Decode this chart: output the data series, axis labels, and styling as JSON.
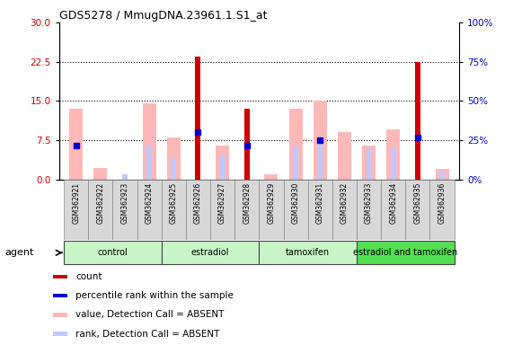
{
  "title": "GDS5278 / MmugDNA.23961.1.S1_at",
  "samples": [
    "GSM362921",
    "GSM362922",
    "GSM362923",
    "GSM362924",
    "GSM362925",
    "GSM362926",
    "GSM362927",
    "GSM362928",
    "GSM362929",
    "GSM362930",
    "GSM362931",
    "GSM362932",
    "GSM362933",
    "GSM362934",
    "GSM362935",
    "GSM362936"
  ],
  "red_bars": [
    0,
    0,
    0,
    0,
    0,
    23.5,
    0,
    13.5,
    0,
    0,
    0,
    0,
    0,
    0,
    22.5,
    0
  ],
  "pink_bars": [
    13.5,
    2.2,
    0,
    14.5,
    8.0,
    0,
    6.5,
    0,
    1.0,
    13.5,
    15.0,
    9.0,
    6.5,
    9.5,
    0,
    2.0
  ],
  "blue_bars": [
    6.5,
    0,
    0,
    0,
    0,
    9.0,
    0,
    6.5,
    0,
    0,
    7.5,
    0,
    0,
    0,
    8.0,
    0
  ],
  "light_blue_bars": [
    0,
    0,
    1.0,
    6.5,
    4.0,
    0,
    4.5,
    0,
    0,
    6.5,
    7.5,
    0,
    6.0,
    6.0,
    0,
    1.5
  ],
  "ylim_left": [
    0,
    30
  ],
  "ylim_right": [
    0,
    100
  ],
  "yticks_left": [
    0,
    7.5,
    15,
    22.5,
    30
  ],
  "yticks_right": [
    0,
    25,
    50,
    75,
    100
  ],
  "left_color": "#cc0000",
  "right_color": "#0000cc",
  "pink_color": "#ffb8b8",
  "light_blue_color": "#c0c8ff",
  "red_color": "#cc0000",
  "blue_color": "#0000cc",
  "bg_color": "#ffffff",
  "plot_bg": "#ffffff",
  "group_boundaries": [
    {
      "start": 0,
      "end": 3,
      "name": "control",
      "color": "#c8f5c8"
    },
    {
      "start": 4,
      "end": 7,
      "name": "estradiol",
      "color": "#c8f5c8"
    },
    {
      "start": 8,
      "end": 11,
      "name": "tamoxifen",
      "color": "#c8f5c8"
    },
    {
      "start": 12,
      "end": 15,
      "name": "estradiol and tamoxifen",
      "color": "#50e050"
    }
  ],
  "legend_items": [
    {
      "color": "#cc0000",
      "label": "count"
    },
    {
      "color": "#0000cc",
      "label": "percentile rank within the sample"
    },
    {
      "color": "#ffb8b8",
      "label": "value, Detection Call = ABSENT"
    },
    {
      "color": "#c0c8ff",
      "label": "rank, Detection Call = ABSENT"
    }
  ]
}
